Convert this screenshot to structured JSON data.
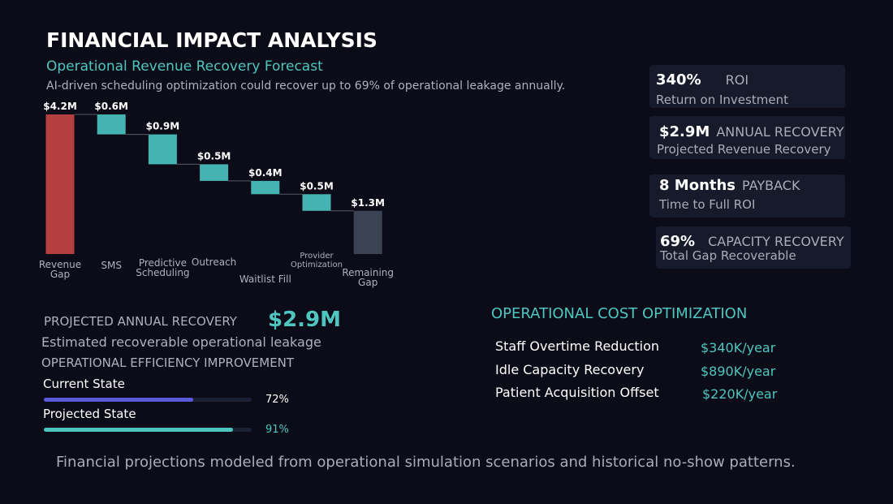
{
  "header": {
    "title": "FINANCIAL IMPACT ANALYSIS",
    "subtitle": "Operational Revenue Recovery Forecast",
    "description": "AI-driven scheduling optimization could recover up to 69% of operational leakage annually."
  },
  "chart_data": {
    "type": "waterfall",
    "categories": [
      "Revenue Gap",
      "SMS",
      "Predictive Scheduling",
      "Outreach",
      "Waitlist Fill",
      "Provider Optimization",
      "Remaining Gap"
    ],
    "values": [
      4.2,
      0.6,
      0.9,
      0.5,
      0.4,
      0.5,
      1.3
    ],
    "value_labels": [
      "$4.2M",
      "$0.6M",
      "$0.9M",
      "$0.5M",
      "$0.4M",
      "$0.5M",
      "$1.3M"
    ],
    "measures": [
      "total",
      "decrease",
      "decrease",
      "decrease",
      "decrease",
      "decrease",
      "total"
    ],
    "colors": [
      "#b53f3f",
      "#46b3b3",
      "#46b3b3",
      "#46b3b3",
      "#46b3b3",
      "#46b3b3",
      "#3b4252"
    ]
  },
  "kpis": [
    {
      "value": "340%",
      "label": "ROI",
      "sub": "Return on Investment"
    },
    {
      "value": "$2.9M",
      "label": "ANNUAL RECOVERY",
      "sub": "Projected Revenue Recovery"
    },
    {
      "value": "8 Months",
      "label": "PAYBACK",
      "sub": "Time to Full ROI"
    },
    {
      "value": "69%",
      "label": "CAPACITY RECOVERY",
      "sub": "Total Gap Recoverable"
    }
  ],
  "recovery": {
    "label": "PROJECTED ANNUAL RECOVERY",
    "value": "$2.9M",
    "sub": "Estimated recoverable operational leakage"
  },
  "efficiency": {
    "title": "OPERATIONAL EFFICIENCY IMPROVEMENT",
    "xlim": [
      0,
      100
    ],
    "bars": [
      {
        "name": "Current State",
        "value": 72,
        "label": "72%",
        "color": "#5a5ad8"
      },
      {
        "name": "Projected State",
        "value": 91,
        "label": "91%",
        "color": "#4cc4c0"
      }
    ]
  },
  "cost": {
    "title": "OPERATIONAL COST OPTIMIZATION",
    "rows": [
      [
        "Staff Overtime Reduction",
        "$340K/year"
      ],
      [
        "Idle Capacity Recovery",
        "$890K/year"
      ],
      [
        "Patient Acquisition Offset",
        "$220K/year"
      ]
    ]
  },
  "footer": "Financial projections modeled from operational simulation scenarios and historical no-show patterns."
}
